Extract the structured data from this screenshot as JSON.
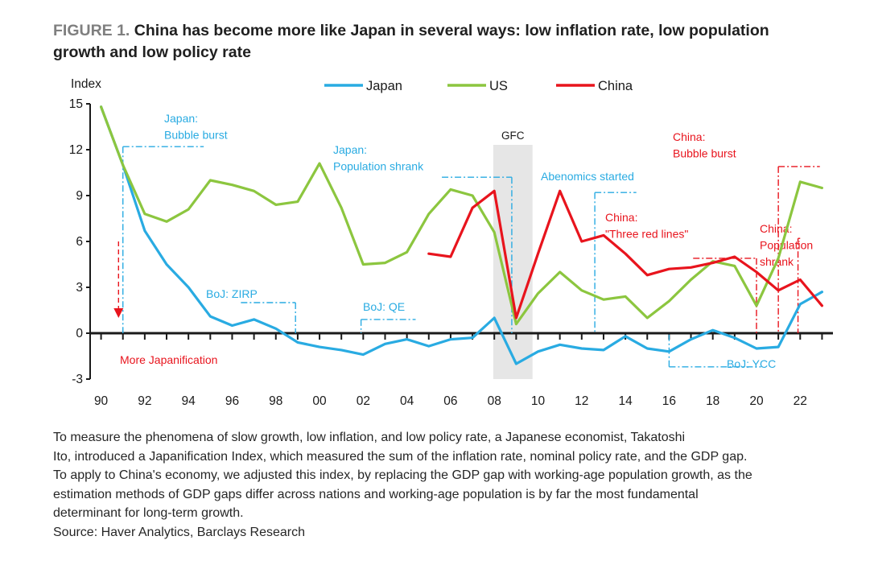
{
  "title": {
    "prefix": "FIGURE 1.",
    "text": "China has become more like Japan in several ways: low inflation rate, low population growth and low policy rate"
  },
  "footnote": {
    "lines": [
      "To measure the phenomena of slow growth, low inflation, and low policy rate, a Japanese economist, Takatoshi",
      "Ito, introduced a Japanification Index, which measured the sum of the inflation rate, nominal policy rate, and the GDP gap.",
      "To apply to China's economy, we adjusted this index, by replacing the GDP gap with working-age population growth, as the",
      "estimation methods of GDP gaps differ across nations and working-age population is by far the most fundamental",
      "determinant for long-term growth."
    ],
    "source": "Source: Haver Analytics, Barclays Research"
  },
  "chart_data": {
    "type": "line",
    "ylabel": "Index",
    "ylim": [
      -3,
      15
    ],
    "yticks": [
      -3,
      0,
      3,
      6,
      9,
      12,
      15
    ],
    "xlim": [
      1989.5,
      2023.5
    ],
    "xtick_years": [
      1990,
      1992,
      1994,
      1996,
      1998,
      2000,
      2002,
      2004,
      2006,
      2008,
      2010,
      2012,
      2014,
      2016,
      2018,
      2020,
      2022
    ],
    "xtick_labels": [
      "90",
      "92",
      "94",
      "96",
      "98",
      "00",
      "02",
      "04",
      "06",
      "08",
      "10",
      "12",
      "14",
      "16",
      "18",
      "20",
      "22"
    ],
    "legend_position": "top",
    "colors": {
      "Japan": "#29abe2",
      "US": "#8cc63f",
      "China": "#e8141d",
      "gfc_band": "#e6e6e6"
    },
    "series": [
      {
        "name": "Japan",
        "x": [
          1990,
          1991,
          1992,
          1993,
          1994,
          1995,
          1996,
          1997,
          1998,
          1999,
          2000,
          2001,
          2002,
          2003,
          2004,
          2005,
          2006,
          2007,
          2008,
          2009,
          2010,
          2011,
          2012,
          2013,
          2014,
          2015,
          2016,
          2017,
          2018,
          2019,
          2020,
          2021,
          2022,
          2023
        ],
        "values": [
          14.8,
          11.0,
          6.7,
          4.5,
          3.0,
          1.1,
          0.5,
          0.9,
          0.3,
          -0.6,
          -0.9,
          -1.1,
          -1.4,
          -0.7,
          -0.4,
          -0.85,
          -0.4,
          -0.3,
          1.0,
          -2.0,
          -1.2,
          -0.75,
          -1.0,
          -1.1,
          -0.2,
          -1.0,
          -1.2,
          -0.4,
          0.2,
          -0.3,
          -1.0,
          -0.9,
          1.9,
          2.7
        ]
      },
      {
        "name": "US",
        "x": [
          1990,
          1991,
          1992,
          1993,
          1994,
          1995,
          1996,
          1997,
          1998,
          1999,
          2000,
          2001,
          2002,
          2003,
          2004,
          2005,
          2006,
          2007,
          2008,
          2009,
          2010,
          2011,
          2012,
          2013,
          2014,
          2015,
          2016,
          2017,
          2018,
          2019,
          2020,
          2021,
          2022,
          2023
        ],
        "values": [
          14.8,
          11.0,
          7.8,
          7.3,
          8.1,
          10.0,
          9.7,
          9.3,
          8.4,
          8.6,
          11.1,
          8.2,
          4.5,
          4.6,
          5.3,
          7.8,
          9.4,
          9.0,
          6.6,
          0.6,
          2.6,
          4.0,
          2.8,
          2.2,
          2.4,
          1.0,
          2.1,
          3.5,
          4.7,
          4.4,
          1.8,
          4.9,
          9.9,
          9.5
        ]
      },
      {
        "name": "China",
        "x": [
          2005,
          2006,
          2007,
          2008,
          2009,
          2010,
          2011,
          2012,
          2013,
          2014,
          2015,
          2016,
          2017,
          2018,
          2019,
          2020,
          2021,
          2022,
          2023
        ],
        "values": [
          5.2,
          5.0,
          8.2,
          9.3,
          1.0,
          5.2,
          9.3,
          6.0,
          6.4,
          5.2,
          3.8,
          4.2,
          4.3,
          4.6,
          5.0,
          4.0,
          2.8,
          3.5,
          1.8
        ]
      }
    ],
    "gfc_band": {
      "label": "GFC",
      "x_start": 2007.95,
      "x_end": 2009.75
    },
    "annotations": [
      {
        "lines": [
          "Japan:",
          "Bubble burst"
        ],
        "color": "blue",
        "anchor_year": 1991,
        "level": 12.2,
        "end_year": 1994.7
      },
      {
        "lines": [
          "Japan:",
          "Population shrank"
        ],
        "color": "blue",
        "anchor_year": 2008.8,
        "level": 10.2,
        "end_year": 2005.6
      },
      {
        "lines": [
          "Abenomics started"
        ],
        "color": "blue",
        "anchor_year": 2012.6,
        "level": 9.2,
        "end_year": 2014.5
      },
      {
        "lines": [
          "BoJ: ZIRP"
        ],
        "color": "blue",
        "anchor_year": 1998.9,
        "level": 2.0,
        "end_year": 1996.4
      },
      {
        "lines": [
          "BoJ: QE"
        ],
        "color": "blue",
        "anchor_year": 2001.9,
        "level": 0.9,
        "end_year": 2004.4
      },
      {
        "lines": [
          "BoJ: YCC"
        ],
        "color": "blue",
        "anchor_year": 2016.0,
        "level": -2.2,
        "end_year": 2020.2
      },
      {
        "lines": [
          "China:",
          "Bubble burst"
        ],
        "color": "red",
        "anchor_year": 2021.0,
        "level": 10.9,
        "end_year": 2022.9
      },
      {
        "lines": [
          "China:",
          "\"Three red lines\""
        ],
        "color": "red",
        "anchor_year": 2020.0,
        "level": 4.9,
        "end_year": 2017.1
      },
      {
        "lines": [
          "China:",
          "Population",
          "shrank"
        ],
        "color": "red",
        "anchor_year": 2021.9,
        "level": 6.2,
        "end_year": 2022.0
      }
    ],
    "japanification": {
      "label": "More Japanification",
      "arrow_year": 1990.8,
      "from": 6.0,
      "to": 1.0
    }
  }
}
